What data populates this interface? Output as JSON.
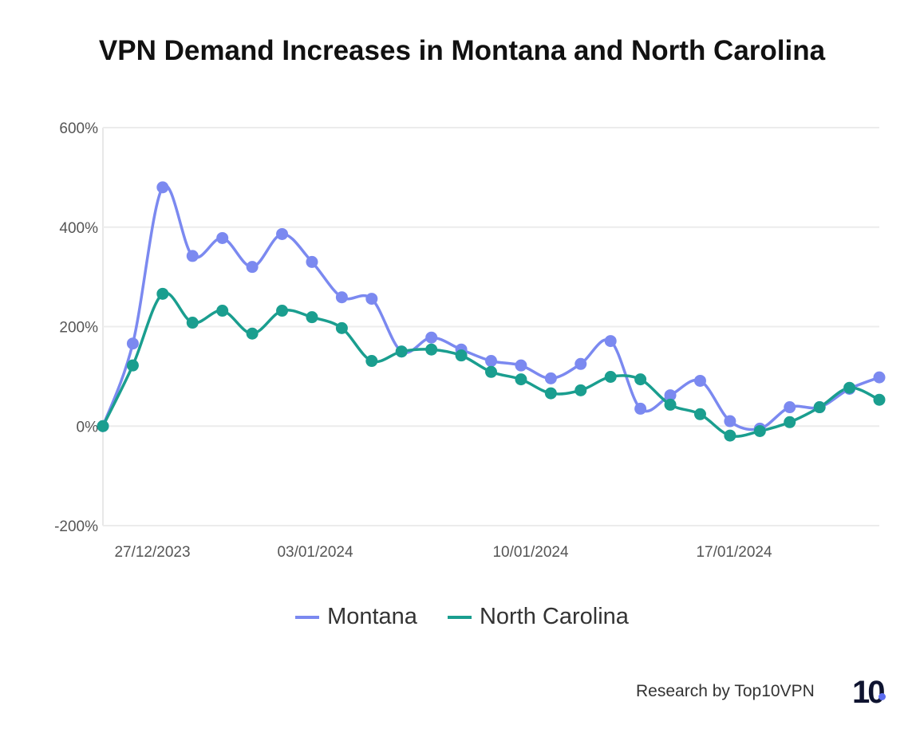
{
  "chart_data": {
    "type": "line",
    "title": "VPN Demand Increases in Montana and North Carolina",
    "xlabel": "",
    "ylabel": "",
    "ylim": [
      -200,
      600
    ],
    "y_ticks": [
      "-200%",
      "0%",
      "200%",
      "400%",
      "600%"
    ],
    "y_tick_values": [
      -200,
      0,
      200,
      400,
      600
    ],
    "x_tick_labels": [
      "27/12/2023",
      "03/01/2024",
      "10/01/2024",
      "17/01/2024"
    ],
    "grid": true,
    "legend_position": "bottom",
    "series": [
      {
        "name": "Montana",
        "color": "#7b89f0",
        "values": [
          0,
          166,
          480,
          342,
          378,
          320,
          386,
          330,
          259,
          256,
          150,
          178,
          154,
          131,
          122,
          96,
          125,
          171,
          35,
          62,
          91,
          10,
          -5,
          38,
          38,
          75,
          98
        ]
      },
      {
        "name": "North Carolina",
        "color": "#1a9e8f",
        "values": [
          0,
          122,
          266,
          208,
          232,
          186,
          232,
          219,
          197,
          131,
          150,
          154,
          142,
          109,
          94,
          66,
          72,
          99,
          94,
          43,
          24,
          -19,
          -10,
          8,
          38,
          77,
          53
        ]
      }
    ]
  },
  "footer": {
    "credit": "Research by Top10VPN",
    "logo_text": "10"
  }
}
